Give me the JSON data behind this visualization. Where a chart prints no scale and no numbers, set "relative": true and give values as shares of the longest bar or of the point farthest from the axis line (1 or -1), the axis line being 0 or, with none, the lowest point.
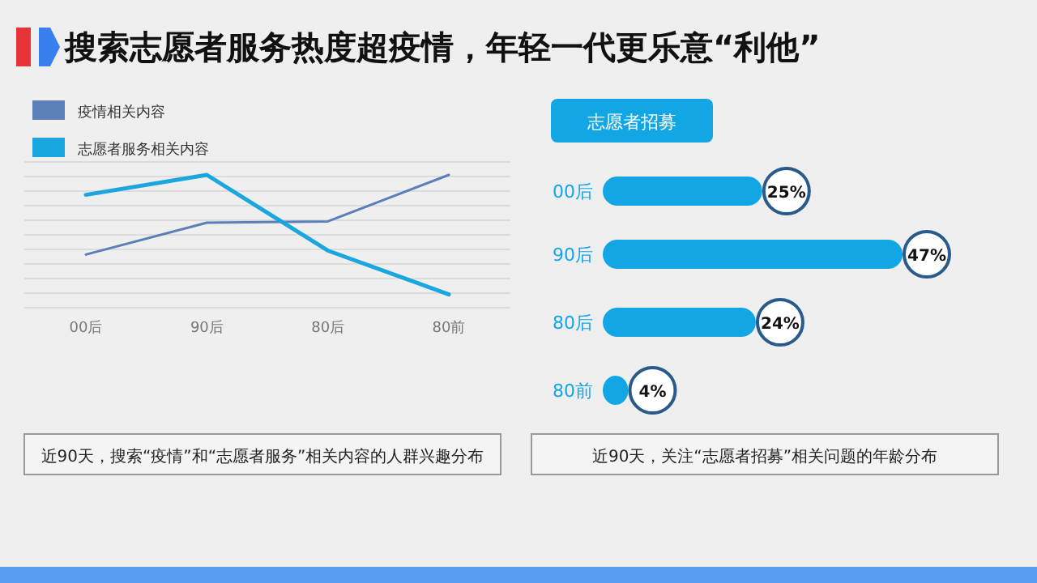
{
  "chart_data": [
    {
      "type": "line",
      "title": "搜索志愿者服务热度超疫情，年轻一代更乐意“利他”",
      "relative": true,
      "grid": true,
      "legend": "top left",
      "categories": [
        "00后",
        "90后",
        "80后",
        "80前"
      ],
      "series": [
        {
          "name": "疫情相关内容",
          "color": "#5b7fb8",
          "values": [
            0.4,
            0.64,
            0.65,
            1
          ]
        },
        {
          "name": "志愿者服务相关内容",
          "color": "#1aa7e0",
          "values": [
            0.85,
            1,
            0.43,
            0.1
          ]
        }
      ],
      "annotations": [
        "近90天，搜索“疫情”和“志愿者服务”相关内容的人群兴趣分布"
      ]
    },
    {
      "type": "bar",
      "orientation": "horizontal",
      "title": "志愿者招募",
      "categories": [
        "00后",
        "90后",
        "80后",
        "80前"
      ],
      "values": [
        25,
        47,
        24,
        4
      ],
      "value_labels": [
        "25%",
        "47%",
        "24%",
        "4%"
      ],
      "color": "#12a6e4",
      "annotations": [
        "近90天，关注“志愿者招募”相关问题的年龄分布"
      ]
    }
  ]
}
